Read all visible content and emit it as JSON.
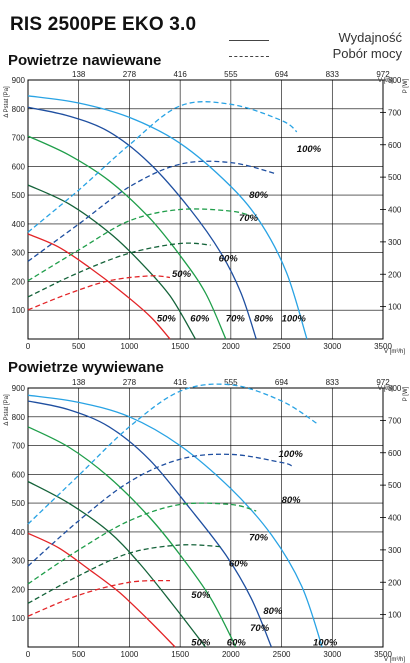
{
  "title": "RIS 2500PE EKO 3.0",
  "legend": {
    "solid": "Wydajność",
    "dashed": "Pobór mocy"
  },
  "colors": {
    "100%": "#29a3e4",
    "80%": "#1f4fa0",
    "70%": "#1f9e4a",
    "60%": "#15633a",
    "50%": "#e32427"
  },
  "chart_data": [
    {
      "type": "line",
      "title": "Powietrze nawiewane",
      "xlabel": "V [m³/h]",
      "x2label": "V [l/s]",
      "ylabel": "Δ Pstat [Pa]",
      "y2label": "P [W]",
      "xlim": [
        0,
        3500
      ],
      "ylim": [
        0,
        900
      ],
      "y2lim": [
        0,
        800
      ],
      "x_ticks": [
        "0",
        "500",
        "1000",
        "1500",
        "2000",
        "2500",
        "3000",
        "3500"
      ],
      "x2_ticks": [
        "0",
        "138",
        "278",
        "416",
        "555",
        "694",
        "833",
        "972"
      ],
      "y_ticks": [
        "100",
        "200",
        "300",
        "400",
        "500",
        "600",
        "700",
        "800",
        "900"
      ],
      "y2_ticks": [
        "100",
        "200",
        "300",
        "400",
        "500",
        "600",
        "700",
        "800"
      ],
      "grid": true,
      "series": [
        {
          "name": "100%",
          "kind": "pressure",
          "x": [
            0,
            500,
            1000,
            1500,
            2000,
            2300,
            2550,
            2750
          ],
          "y": [
            845,
            820,
            770,
            680,
            530,
            400,
            230,
            0
          ]
        },
        {
          "name": "80%",
          "kind": "pressure",
          "x": [
            0,
            400,
            800,
            1200,
            1600,
            1900,
            2100,
            2250
          ],
          "y": [
            805,
            775,
            720,
            610,
            450,
            300,
            160,
            0
          ]
        },
        {
          "name": "70%",
          "kind": "pressure",
          "x": [
            0,
            400,
            800,
            1200,
            1500,
            1750,
            1950
          ],
          "y": [
            705,
            640,
            550,
            420,
            290,
            160,
            0
          ]
        },
        {
          "name": "60%",
          "kind": "pressure",
          "x": [
            0,
            400,
            800,
            1100,
            1400,
            1650
          ],
          "y": [
            535,
            470,
            370,
            270,
            150,
            0
          ]
        },
        {
          "name": "50%",
          "kind": "pressure",
          "x": [
            0,
            300,
            600,
            900,
            1200,
            1400
          ],
          "y": [
            365,
            320,
            250,
            170,
            80,
            0
          ]
        },
        {
          "name": "100%",
          "kind": "power",
          "x": [
            0,
            500,
            1000,
            1500,
            2000,
            2500,
            2650
          ],
          "y": [
            330,
            460,
            600,
            720,
            725,
            675,
            640
          ]
        },
        {
          "name": "80%",
          "kind": "power",
          "x": [
            0,
            500,
            1000,
            1500,
            2000,
            2450
          ],
          "y": [
            240,
            355,
            470,
            540,
            545,
            510
          ]
        },
        {
          "name": "70%",
          "kind": "power",
          "x": [
            0,
            500,
            1000,
            1500,
            2000,
            2200
          ],
          "y": [
            180,
            275,
            365,
            400,
            395,
            380
          ]
        },
        {
          "name": "60%",
          "kind": "power",
          "x": [
            0,
            500,
            1000,
            1500,
            1800
          ],
          "y": [
            130,
            205,
            265,
            295,
            290
          ]
        },
        {
          "name": "50%",
          "kind": "power",
          "x": [
            0,
            400,
            800,
            1200,
            1400
          ],
          "y": [
            90,
            140,
            180,
            195,
            190
          ]
        }
      ]
    },
    {
      "type": "line",
      "title": "Powietrze wywiewane",
      "xlabel": "V [m³/h]",
      "x2label": "V [l/s]",
      "ylabel": "Δ Pstat [Pa]",
      "y2label": "P [W]",
      "xlim": [
        0,
        3500
      ],
      "ylim": [
        0,
        900
      ],
      "y2lim": [
        0,
        800
      ],
      "x_ticks": [
        "0",
        "500",
        "1000",
        "1500",
        "2000",
        "2500",
        "3000",
        "3500"
      ],
      "x2_ticks": [
        "0",
        "138",
        "278",
        "416",
        "555",
        "694",
        "833",
        "972"
      ],
      "y_ticks": [
        "100",
        "200",
        "300",
        "400",
        "500",
        "600",
        "700",
        "800",
        "900"
      ],
      "y2_ticks": [
        "100",
        "200",
        "300",
        "400",
        "500",
        "600",
        "700",
        "800"
      ],
      "grid": true,
      "series": [
        {
          "name": "100%",
          "kind": "pressure",
          "x": [
            0,
            500,
            1000,
            1500,
            2000,
            2400,
            2700,
            2900
          ],
          "y": [
            875,
            850,
            800,
            700,
            550,
            390,
            210,
            0
          ]
        },
        {
          "name": "80%",
          "kind": "pressure",
          "x": [
            0,
            400,
            800,
            1200,
            1600,
            1950,
            2200,
            2400
          ],
          "y": [
            855,
            825,
            765,
            650,
            480,
            320,
            170,
            0
          ]
        },
        {
          "name": "70%",
          "kind": "pressure",
          "x": [
            0,
            400,
            800,
            1200,
            1500,
            1800,
            2050
          ],
          "y": [
            765,
            695,
            590,
            450,
            320,
            170,
            0
          ]
        },
        {
          "name": "60%",
          "kind": "pressure",
          "x": [
            0,
            400,
            800,
            1100,
            1400,
            1750
          ],
          "y": [
            575,
            500,
            400,
            290,
            160,
            0
          ]
        },
        {
          "name": "50%",
          "kind": "pressure",
          "x": [
            0,
            300,
            600,
            900,
            1200,
            1450
          ],
          "y": [
            395,
            345,
            270,
            190,
            90,
            0
          ]
        },
        {
          "name": "100%",
          "kind": "power",
          "x": [
            0,
            500,
            1000,
            1500,
            2000,
            2500,
            2850
          ],
          "y": [
            380,
            530,
            680,
            790,
            810,
            760,
            690
          ]
        },
        {
          "name": "80%",
          "kind": "power",
          "x": [
            0,
            500,
            1000,
            1500,
            2000,
            2500,
            2600
          ],
          "y": [
            250,
            390,
            510,
            580,
            595,
            570,
            560
          ]
        },
        {
          "name": "70%",
          "kind": "power",
          "x": [
            0,
            500,
            1000,
            1500,
            2000,
            2250
          ],
          "y": [
            195,
            300,
            390,
            440,
            440,
            420
          ]
        },
        {
          "name": "60%",
          "kind": "power",
          "x": [
            0,
            500,
            1000,
            1500,
            1900
          ],
          "y": [
            135,
            220,
            290,
            315,
            310
          ]
        },
        {
          "name": "50%",
          "kind": "power",
          "x": [
            0,
            500,
            1000,
            1400
          ],
          "y": [
            95,
            160,
            200,
            205
          ]
        }
      ]
    }
  ],
  "labels": [
    [
      {
        "text": "100%",
        "x": 2650,
        "y": 650
      },
      {
        "text": "80%",
        "x": 2180,
        "y": 490
      },
      {
        "text": "70%",
        "x": 2080,
        "y": 410
      },
      {
        "text": "60%",
        "x": 1880,
        "y": 270
      },
      {
        "text": "50%",
        "x": 1420,
        "y": 215
      },
      {
        "text": "50%",
        "x": 1270,
        "y": 60
      },
      {
        "text": "60%",
        "x": 1600,
        "y": 60
      },
      {
        "text": "70%",
        "x": 1950,
        "y": 60
      },
      {
        "text": "80%",
        "x": 2230,
        "y": 60
      },
      {
        "text": "100%",
        "x": 2500,
        "y": 60
      }
    ],
    [
      {
        "text": "100%",
        "x": 2470,
        "y": 660
      },
      {
        "text": "80%",
        "x": 2500,
        "y": 500
      },
      {
        "text": "70%",
        "x": 2180,
        "y": 370
      },
      {
        "text": "60%",
        "x": 1980,
        "y": 280
      },
      {
        "text": "50%",
        "x": 1610,
        "y": 170
      },
      {
        "text": "80%",
        "x": 2320,
        "y": 115
      },
      {
        "text": "70%",
        "x": 2190,
        "y": 55
      },
      {
        "text": "50%",
        "x": 1610,
        "y": 5
      },
      {
        "text": "60%",
        "x": 1960,
        "y": 5
      },
      {
        "text": "100%",
        "x": 2810,
        "y": 5
      }
    ]
  ]
}
